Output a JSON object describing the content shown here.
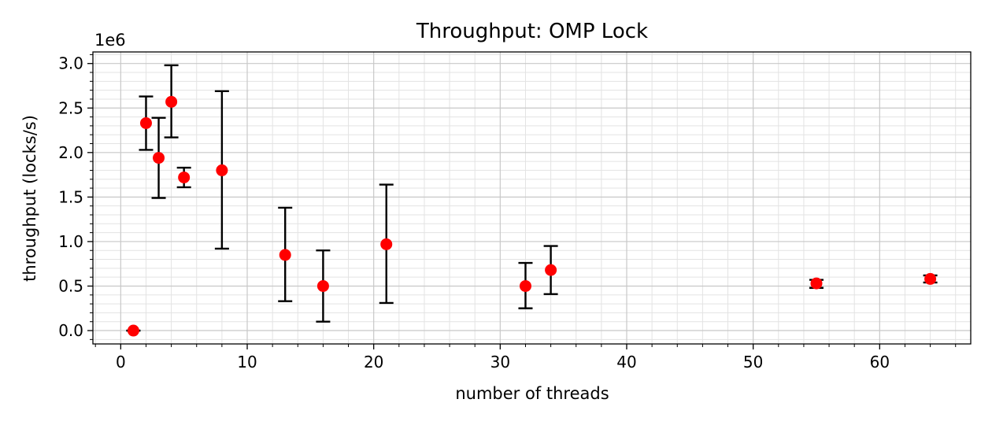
{
  "chart_data": {
    "type": "scatter",
    "title": "Throughput: OMP Lock",
    "xlabel": "number of threads",
    "ylabel": "throughput (locks/s)",
    "y_multiplier": "1e6",
    "xlim": [
      -2.2,
      67.2
    ],
    "ylim": [
      -0.15,
      3.13
    ],
    "x_major_ticks": [
      0,
      10,
      20,
      30,
      40,
      50,
      60
    ],
    "x_tick_labels": [
      "0",
      "10",
      "20",
      "30",
      "40",
      "50",
      "60"
    ],
    "y_major_ticks": [
      0.0,
      0.5,
      1.0,
      1.5,
      2.0,
      2.5,
      3.0
    ],
    "y_tick_labels": [
      "0.0",
      "0.5",
      "1.0",
      "1.5",
      "2.0",
      "2.5",
      "3.0"
    ],
    "grid": true,
    "grid_minor": true,
    "legend": "none",
    "marker_color": "#ff0000",
    "errorbar_color": "#000000",
    "points": [
      {
        "x": 1,
        "y": 0.0,
        "err_low": 0.0,
        "err_high": 0.0
      },
      {
        "x": 2,
        "y": 2.33,
        "err_low": 2.03,
        "err_high": 2.63
      },
      {
        "x": 3,
        "y": 1.94,
        "err_low": 1.49,
        "err_high": 2.39
      },
      {
        "x": 4,
        "y": 2.57,
        "err_low": 2.17,
        "err_high": 2.98
      },
      {
        "x": 5,
        "y": 1.72,
        "err_low": 1.61,
        "err_high": 1.83
      },
      {
        "x": 8,
        "y": 1.8,
        "err_low": 0.92,
        "err_high": 2.69
      },
      {
        "x": 13,
        "y": 0.85,
        "err_low": 0.33,
        "err_high": 1.38
      },
      {
        "x": 16,
        "y": 0.5,
        "err_low": 0.1,
        "err_high": 0.9
      },
      {
        "x": 21,
        "y": 0.97,
        "err_low": 0.31,
        "err_high": 1.64
      },
      {
        "x": 32,
        "y": 0.5,
        "err_low": 0.25,
        "err_high": 0.76
      },
      {
        "x": 34,
        "y": 0.68,
        "err_low": 0.41,
        "err_high": 0.95
      },
      {
        "x": 55,
        "y": 0.53,
        "err_low": 0.48,
        "err_high": 0.57
      },
      {
        "x": 64,
        "y": 0.58,
        "err_low": 0.54,
        "err_high": 0.62
      }
    ]
  }
}
